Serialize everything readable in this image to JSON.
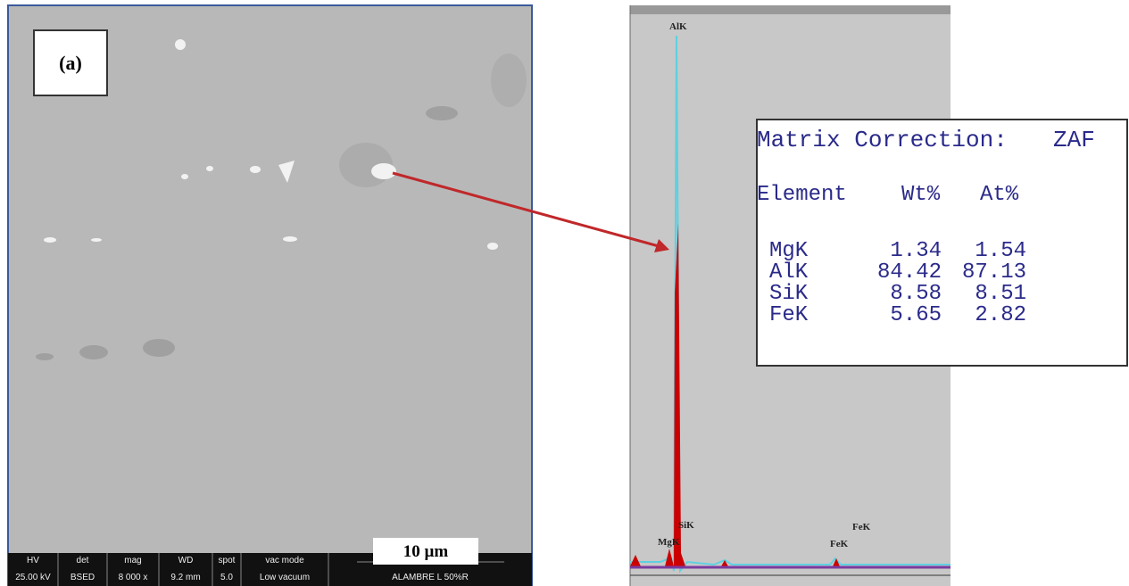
{
  "panel_label": "(a)",
  "scale_bar": "10 µm",
  "info_bar": {
    "headers": [
      "HV",
      "det",
      "mag",
      "WD",
      "spot",
      "vac mode"
    ],
    "values": [
      "25.00 kV",
      "BSED",
      "8 000 x",
      "9.2 mm",
      "5.0",
      "Low vacuum"
    ],
    "sample": "ALAMBRE L 50%R"
  },
  "spectrum": {
    "peak_labels": [
      "AlK",
      "SiK",
      "MgK",
      "FeK",
      "FeK"
    ]
  },
  "table": {
    "title": "Matrix Correction:",
    "method": "ZAF",
    "headers": [
      "Element",
      "Wt%",
      "At%"
    ],
    "rows": [
      [
        "MgK",
        "1.34",
        "1.54"
      ],
      [
        "AlK",
        "84.42",
        "87.13"
      ],
      [
        "SiK",
        "8.58",
        "8.51"
      ],
      [
        "FeK",
        "5.65",
        "2.82"
      ]
    ]
  }
}
